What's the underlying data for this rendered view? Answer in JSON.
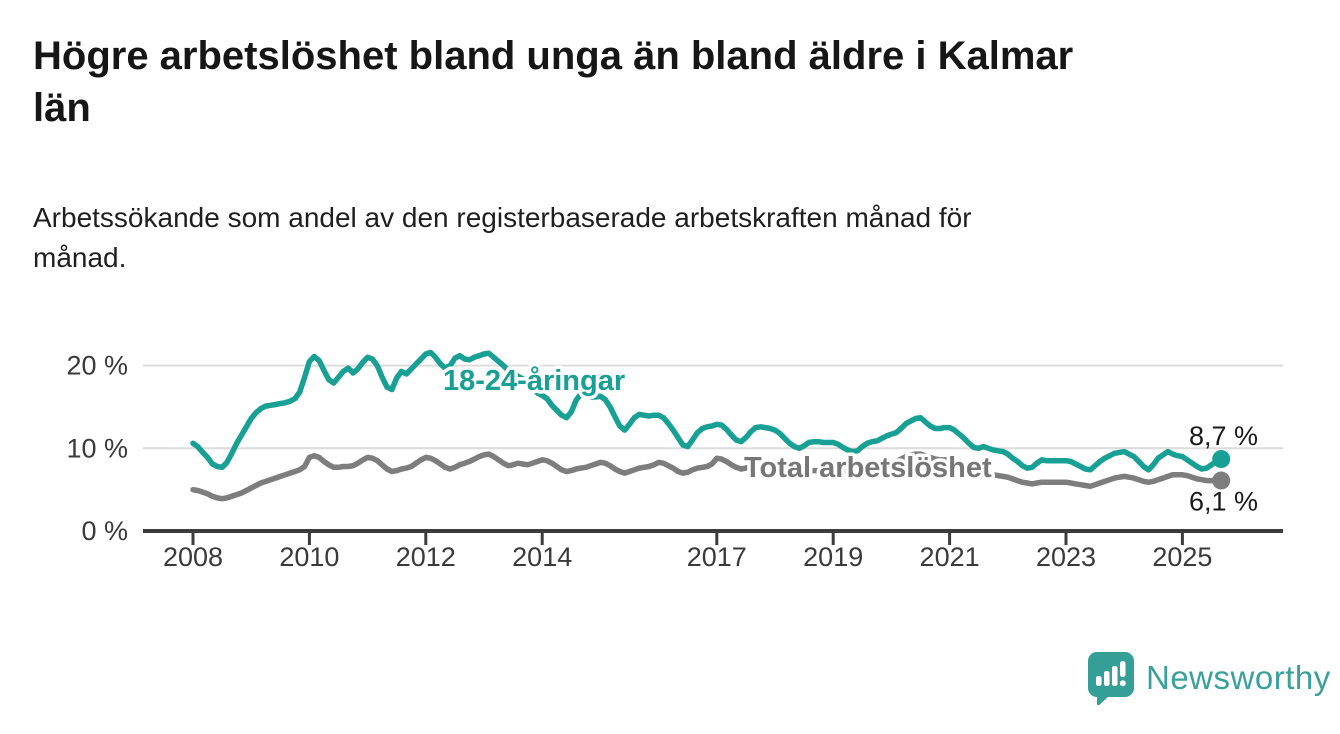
{
  "header": {
    "title": "Högre arbetslöshet bland unga än bland äldre i Kalmar län",
    "title_lines": [
      "Högre arbetslöshet bland unga än bland äldre i Kalmar",
      "län"
    ],
    "subtitle": "Arbetssökande som andel av den registerbaserade arbetskraften månad för månad.",
    "subtitle_lines": [
      "Arbetssökande som andel av den registerbaserade arbetskraften månad för",
      "månad."
    ]
  },
  "chart_data": {
    "type": "line",
    "unit": "%",
    "x_start_year": 2008,
    "x_start_month": 1,
    "frequency": "monthly",
    "x_tick_labels": [
      "2008",
      "2010",
      "2012",
      "2014",
      "2017",
      "2019",
      "2021",
      "2023",
      "2025"
    ],
    "y_ticks": [
      {
        "value": 0,
        "label": "0 %"
      },
      {
        "value": 10,
        "label": "10 %"
      },
      {
        "value": 20,
        "label": "20 %"
      }
    ],
    "ylim": [
      0,
      22.5
    ],
    "grid": "horizontal",
    "legend": "inline-labels",
    "series": [
      {
        "name": "Total arbetslöshet",
        "color": "#7d7d7d",
        "end_label": "6,1 %",
        "values": [
          5.0,
          4.9,
          4.7,
          4.5,
          4.2,
          4.0,
          3.9,
          4.0,
          4.2,
          4.4,
          4.6,
          4.9,
          5.2,
          5.5,
          5.8,
          6.0,
          6.2,
          6.4,
          6.6,
          6.8,
          7.0,
          7.2,
          7.4,
          7.8,
          8.9,
          9.1,
          8.9,
          8.4,
          8.0,
          7.7,
          7.7,
          7.8,
          7.8,
          7.9,
          8.2,
          8.6,
          8.9,
          8.8,
          8.5,
          8.0,
          7.5,
          7.2,
          7.3,
          7.5,
          7.6,
          7.8,
          8.2,
          8.6,
          8.9,
          8.8,
          8.5,
          8.1,
          7.7,
          7.5,
          7.7,
          8.0,
          8.2,
          8.4,
          8.7,
          9.0,
          9.2,
          9.3,
          9.0,
          8.6,
          8.2,
          7.9,
          8.0,
          8.2,
          8.1,
          8.0,
          8.2,
          8.4,
          8.6,
          8.5,
          8.2,
          7.8,
          7.4,
          7.2,
          7.3,
          7.5,
          7.6,
          7.7,
          7.9,
          8.1,
          8.3,
          8.2,
          7.9,
          7.5,
          7.2,
          7.0,
          7.2,
          7.4,
          7.6,
          7.7,
          7.8,
          8.0,
          8.3,
          8.2,
          7.9,
          7.6,
          7.2,
          7.0,
          7.1,
          7.4,
          7.6,
          7.7,
          7.8,
          8.1,
          8.8,
          8.7,
          8.4,
          8.0,
          7.7,
          7.5,
          7.6,
          7.8,
          7.9,
          8.0,
          8.1,
          8.2,
          8.3,
          8.2,
          7.9,
          7.6,
          7.3,
          7.1,
          7.2,
          7.3,
          7.3,
          7.3,
          7.4,
          7.5,
          7.6,
          7.5,
          7.3,
          7.1,
          7.0,
          7.0,
          7.2,
          7.4,
          7.5,
          7.6,
          7.8,
          8.0,
          8.2,
          8.4,
          8.7,
          9.0,
          9.2,
          9.3,
          9.3,
          9.1,
          8.9,
          8.7,
          8.6,
          8.6,
          8.6,
          8.4,
          8.1,
          7.8,
          7.5,
          7.2,
          7.1,
          7.0,
          6.9,
          6.8,
          6.7,
          6.6,
          6.5,
          6.3,
          6.1,
          5.9,
          5.8,
          5.7,
          5.8,
          5.9,
          5.9,
          5.9,
          5.9,
          5.9,
          5.9,
          5.8,
          5.7,
          5.6,
          5.5,
          5.4,
          5.6,
          5.8,
          6.0,
          6.2,
          6.4,
          6.5,
          6.6,
          6.5,
          6.4,
          6.2,
          6.0,
          5.9,
          6.0,
          6.2,
          6.4,
          6.6,
          6.8,
          6.8,
          6.8,
          6.7,
          6.5,
          6.3,
          6.2,
          6.1,
          6.1,
          6.1,
          6.1
        ]
      },
      {
        "name": "18-24-åringar",
        "color": "#18a094",
        "end_label": "8,7 %",
        "values": [
          10.6,
          10.2,
          9.5,
          8.9,
          8.1,
          7.8,
          7.7,
          8.3,
          9.4,
          10.6,
          11.6,
          12.6,
          13.6,
          14.3,
          14.8,
          15.1,
          15.2,
          15.3,
          15.4,
          15.5,
          15.7,
          16.0,
          16.8,
          18.6,
          20.5,
          21.1,
          20.6,
          19.4,
          18.3,
          17.9,
          18.6,
          19.3,
          19.7,
          19.1,
          19.6,
          20.4,
          21.0,
          20.8,
          20.0,
          18.6,
          17.4,
          17.1,
          18.5,
          19.3,
          19.0,
          19.6,
          20.2,
          20.8,
          21.4,
          21.6,
          21.0,
          20.2,
          19.7,
          20.0,
          20.9,
          21.2,
          20.8,
          20.7,
          21.0,
          21.2,
          21.4,
          21.5,
          21.0,
          20.5,
          20.0,
          19.4,
          19.2,
          18.7,
          18.4,
          17.8,
          17.2,
          16.7,
          16.4,
          16.0,
          15.2,
          14.6,
          14.0,
          13.7,
          14.4,
          15.8,
          16.6,
          16.5,
          16.2,
          16.2,
          16.3,
          15.9,
          15.0,
          13.8,
          12.7,
          12.2,
          12.9,
          13.7,
          14.1,
          14.0,
          13.9,
          14.0,
          14.0,
          13.7,
          13.0,
          12.2,
          11.3,
          10.4,
          10.2,
          11.0,
          11.9,
          12.4,
          12.6,
          12.7,
          12.9,
          12.8,
          12.3,
          11.6,
          11.0,
          10.8,
          11.3,
          12.0,
          12.5,
          12.6,
          12.5,
          12.4,
          12.2,
          11.8,
          11.2,
          10.6,
          10.2,
          10.0,
          10.3,
          10.7,
          10.8,
          10.8,
          10.7,
          10.7,
          10.7,
          10.5,
          10.1,
          9.8,
          9.6,
          9.7,
          10.2,
          10.6,
          10.8,
          10.9,
          11.2,
          11.5,
          11.7,
          11.9,
          12.4,
          13.0,
          13.3,
          13.6,
          13.7,
          13.2,
          12.7,
          12.4,
          12.4,
          12.5,
          12.5,
          12.2,
          11.7,
          11.2,
          10.6,
          10.1,
          10.0,
          10.2,
          10.0,
          9.8,
          9.7,
          9.6,
          9.3,
          8.8,
          8.4,
          7.9,
          7.6,
          7.7,
          8.2,
          8.6,
          8.5,
          8.5,
          8.5,
          8.5,
          8.5,
          8.4,
          8.1,
          7.8,
          7.5,
          7.4,
          7.9,
          8.4,
          8.8,
          9.1,
          9.4,
          9.5,
          9.6,
          9.3,
          9.0,
          8.4,
          7.8,
          7.4,
          8.0,
          8.8,
          9.2,
          9.6,
          9.3,
          9.1,
          9.0,
          8.6,
          8.2,
          7.8,
          7.5,
          7.6,
          8.0,
          8.4,
          8.7
        ]
      }
    ],
    "title": "Högre arbetslöshet bland unga än bland äldre i Kalmar län",
    "xlabel": "",
    "ylabel": ""
  },
  "footer": {
    "brand": "Newsworthy",
    "logo_icon": "speech-bubble-bar-chart-icon",
    "brand_color": "#3aa19a",
    "bubble_color": "#359e97"
  }
}
